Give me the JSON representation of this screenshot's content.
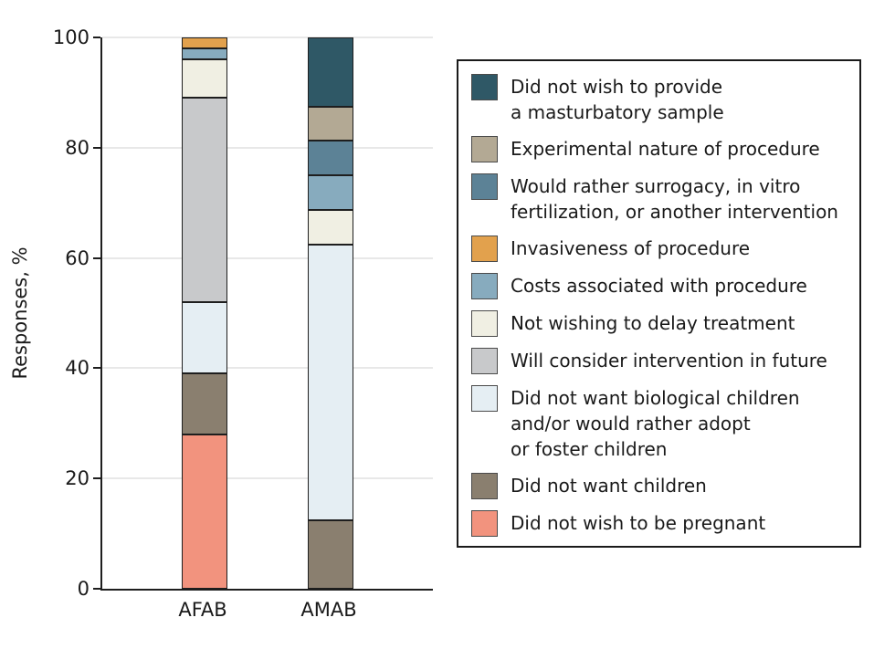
{
  "chart_data": {
    "type": "bar",
    "stacked": true,
    "title": "",
    "xlabel": "",
    "ylabel": "Responses, %",
    "ylim": [
      0,
      100
    ],
    "yticks": [
      0,
      20,
      40,
      60,
      80,
      100
    ],
    "grid": true,
    "legend_position": "right",
    "categories": [
      "AFAB",
      "AMAB"
    ],
    "series": [
      {
        "name": "Did not wish to provide\na masturbatory sample",
        "color": "#2F5866",
        "values": [
          0,
          12.5
        ]
      },
      {
        "name": "Experimental nature of procedure",
        "color": "#B3A994",
        "values": [
          0,
          6.25
        ]
      },
      {
        "name": "Would rather surrogacy, in vitro\nfertilization, or another intervention",
        "color": "#5C8296",
        "values": [
          0,
          6.25
        ]
      },
      {
        "name": "Invasiveness of procedure",
        "color": "#E2A14D",
        "values": [
          2,
          0
        ]
      },
      {
        "name": "Costs associated with procedure",
        "color": "#87ABBE",
        "values": [
          2,
          6.25
        ]
      },
      {
        "name": "Not wishing to delay treatment",
        "color": "#F0EFE3",
        "values": [
          7,
          6.25
        ]
      },
      {
        "name": "Will consider intervention in future",
        "color": "#C8C9CB",
        "values": [
          37,
          0
        ]
      },
      {
        "name": "Did not want biological children\nand/or would rather adopt\nor foster children",
        "color": "#E5EEF3",
        "values": [
          13,
          50
        ]
      },
      {
        "name": "Did not want children",
        "color": "#8A7F6F",
        "values": [
          11,
          12.5
        ]
      },
      {
        "name": "Did not wish to be pregnant",
        "color": "#F2937E",
        "values": [
          28,
          0
        ]
      }
    ],
    "stack_order_bottom_to_top": "reverse of series list"
  },
  "colors": {
    "axis": "#1e1e1e",
    "gridline": "#e8e8e8",
    "segment_edge": "#1e1e1e",
    "background": "#ffffff",
    "text": "#1a1a1a"
  }
}
